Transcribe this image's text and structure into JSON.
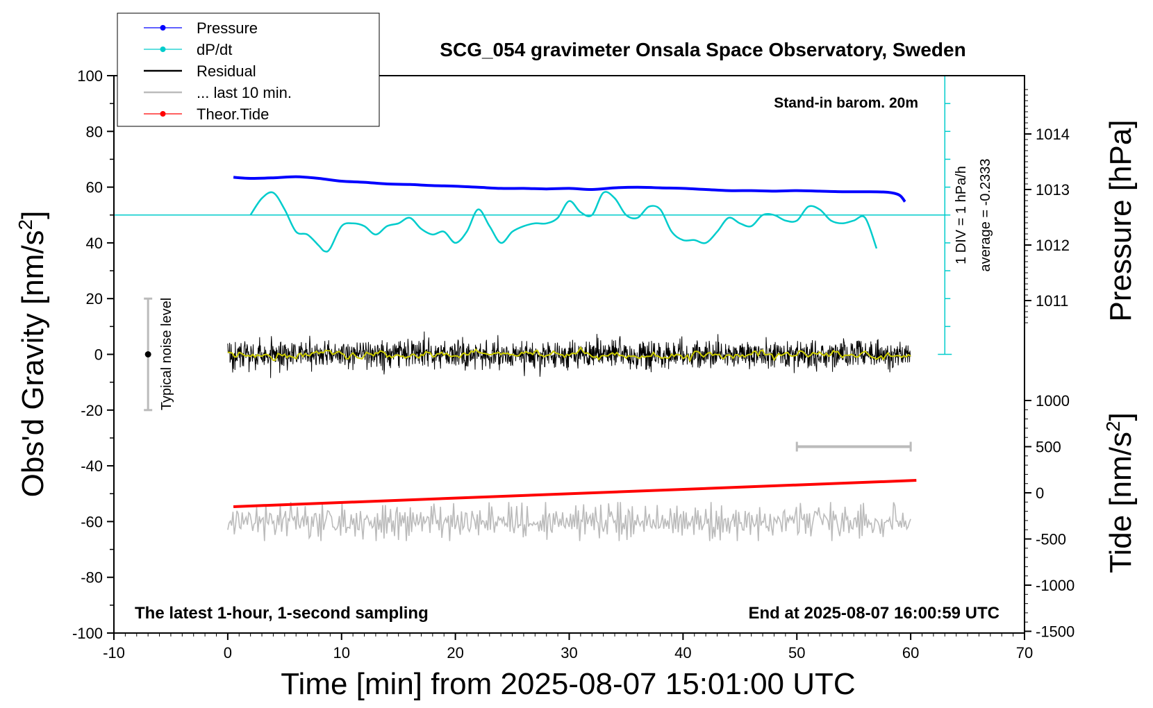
{
  "chart_data": {
    "type": "line",
    "title": "SCG_054 gravimeter Onsala Space Observatory, Sweden",
    "xlabel": "Time [min] from 2025-08-07 15:01:00 UTC",
    "ylabel_left_main": "Obs'd Gravity [nm/s",
    "ylabel_left_sup": "2",
    "ylabel_left_close": "]",
    "ylabel_right_top": "Pressure [hPa]",
    "ylabel_right_bottom_main": "Tide [nm/s",
    "ylabel_right_bottom_sup": "2",
    "ylabel_right_bottom_close": "]",
    "xlim": [
      -10,
      70
    ],
    "ylim": [
      -100,
      100
    ],
    "x_ticks": [
      "-10",
      "0",
      "10",
      "20",
      "30",
      "40",
      "50",
      "60",
      "70"
    ],
    "y_ticks": [
      "100",
      "80",
      "60",
      "40",
      "20",
      "0",
      "-20",
      "-40",
      "-60",
      "-80",
      "-100"
    ],
    "pressure_axis": {
      "ticks": [
        "1014",
        "1013",
        "1012",
        "1011"
      ],
      "tick_values": [
        1014,
        1013,
        1012,
        1011
      ]
    },
    "tide_axis": {
      "ticks": [
        "1000",
        "500",
        "0",
        "-500",
        "-1000",
        "-1500"
      ],
      "tick_values": [
        1000,
        500,
        0,
        -500,
        -1000,
        -1500
      ]
    },
    "grid": false,
    "legend_position": "top-left",
    "legend": [
      {
        "label": "Pressure",
        "color": "#0000ff",
        "marker": true
      },
      {
        "label": "dP/dt",
        "color": "#00cccc",
        "marker": true
      },
      {
        "label": "Residual",
        "color": "#000000",
        "marker": false
      },
      {
        "label": "... last 10 min.",
        "color": "#bbbbbb",
        "marker": false
      },
      {
        "label": "Theor.Tide",
        "color": "#ff0000",
        "marker": true
      }
    ],
    "annotations": {
      "barometer": "Stand-in barom. 20m",
      "dpdt_scale": "1 DIV = 1 hPa/h",
      "dpdt_average": "average = -0.2333",
      "noise": "Typical noise level",
      "bottom_left": "The latest 1-hour, 1-second sampling",
      "bottom_right": "End at 2025-08-07 16:00:59 UTC"
    },
    "series": [
      {
        "name": "Pressure",
        "color": "#0000ff",
        "unit": "hPa",
        "x": [
          0.5,
          2,
          4,
          6,
          8,
          10,
          12,
          14,
          16,
          18,
          20,
          22,
          24,
          26,
          28,
          30,
          32,
          34,
          36,
          38,
          40,
          42,
          44,
          46,
          48,
          50,
          52,
          54,
          56,
          58,
          59,
          59.5
        ],
        "values": [
          1013.22,
          1013.2,
          1013.21,
          1013.23,
          1013.2,
          1013.15,
          1013.13,
          1013.1,
          1013.09,
          1013.07,
          1013.06,
          1013.04,
          1013.02,
          1013.02,
          1013.01,
          1013.02,
          1013.0,
          1013.03,
          1013.04,
          1013.03,
          1013.02,
          1013.0,
          1012.98,
          1012.98,
          1012.97,
          1012.98,
          1012.97,
          1012.96,
          1012.96,
          1012.95,
          1012.9,
          1012.78
        ]
      },
      {
        "name": "dP/dt",
        "color": "#00cccc",
        "unit": "nm/s2 (plot scale)",
        "baseline": 50,
        "x": [
          2,
          3,
          4,
          5,
          6,
          7,
          8,
          8.5,
          9,
          10,
          11,
          12,
          13,
          14,
          15,
          16,
          17,
          18,
          19,
          20,
          21,
          22,
          23,
          24,
          25,
          26,
          27,
          28,
          29,
          30,
          31,
          32,
          33,
          34,
          35,
          36,
          37,
          38,
          39,
          40,
          41,
          42,
          43,
          44,
          45,
          46,
          47,
          48,
          49,
          50,
          51,
          52,
          53,
          54,
          55,
          56,
          57
        ],
        "values": [
          50,
          56,
          58,
          52,
          44,
          43,
          39,
          37,
          38,
          46,
          47,
          46,
          43,
          46,
          47,
          49,
          45,
          43,
          44,
          40,
          44,
          52,
          46,
          40,
          44,
          46,
          47,
          47,
          49,
          55,
          51,
          50,
          58,
          56,
          50,
          49,
          53,
          52,
          44,
          41,
          41,
          40,
          44,
          49,
          47,
          46,
          50,
          50,
          48,
          48,
          53,
          52,
          48,
          47,
          48,
          49,
          38
        ]
      },
      {
        "name": "Residual",
        "color": "#000000",
        "unit": "nm/s2",
        "x_range": [
          0,
          60
        ],
        "center": 0,
        "amplitude_typical": 4,
        "amplitude_max": 12
      },
      {
        "name": "Smoothed residual",
        "color": "#cccc00",
        "unit": "nm/s2",
        "x_range": [
          0,
          60
        ],
        "center": 0,
        "amplitude_typical": 1
      },
      {
        "name": "Theor.Tide",
        "color": "#ff0000",
        "unit": "nm/s2 (tide axis)",
        "x": [
          0.5,
          60.5
        ],
        "values": [
          -150,
          135
        ]
      },
      {
        "name": "... last 10 min.",
        "color": "#bbbbbb",
        "unit": "nm/s2",
        "x_range": [
          0,
          60
        ],
        "center": -60,
        "amplitude_typical": 4,
        "amplitude_max": 7
      }
    ],
    "noise_bar": {
      "x": -7,
      "center": 0,
      "low": -20,
      "high": 20
    },
    "last10_marker": {
      "x_start": 50,
      "x_end": 60,
      "tide_value": 500
    },
    "dpdt_scale_bar": {
      "x": 63,
      "top": 100,
      "bottom": 0,
      "div": 10
    }
  }
}
